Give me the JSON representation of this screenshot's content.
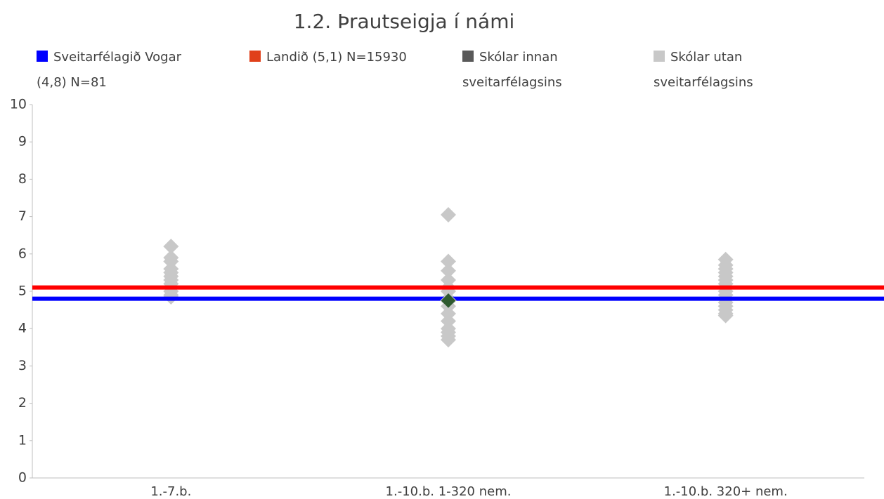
{
  "chart_data": {
    "type": "strip",
    "title": "1.2. Þrautseigja í námi",
    "categories": [
      "1.-7.b.",
      "1.-10.b. 1-320 nem.",
      "1.-10.b. 320+ nem."
    ],
    "ylim": [
      0,
      10
    ],
    "yticks": [
      0,
      1,
      2,
      3,
      4,
      5,
      6,
      7,
      8,
      9,
      10
    ],
    "series": [
      {
        "name": "Sveitarfélagið Vogar (4,8) N=81",
        "kind": "hline",
        "color": "#0000ff",
        "legend_color": "#0000ff",
        "value": 4.8
      },
      {
        "name": "Landið (5,1) N=15930",
        "kind": "hline",
        "color": "#ff0000",
        "legend_color": "#e0401a",
        "value": 5.1
      },
      {
        "name": "Skólar innan sveitarfélagsins",
        "kind": "points",
        "color": "#2f5a2f",
        "legend_color": "#595959",
        "values": [
          [],
          [
            4.75
          ],
          []
        ]
      },
      {
        "name": "Skólar utan sveitarfélagsins",
        "kind": "points",
        "color": "#c8c8c8",
        "legend_color": "#c8c8c8",
        "values": [
          [
            6.2,
            5.9,
            5.8,
            5.6,
            5.5,
            5.4,
            5.3,
            5.2,
            5.1,
            5.0,
            4.9,
            4.85
          ],
          [
            7.05,
            5.8,
            5.55,
            5.3,
            5.1,
            5.0,
            4.8,
            4.6,
            4.4,
            4.2,
            4.0,
            3.9,
            3.8,
            3.7
          ],
          [
            5.85,
            5.7,
            5.6,
            5.5,
            5.4,
            5.3,
            5.2,
            5.1,
            5.0,
            4.9,
            4.8,
            4.7,
            4.6,
            4.5,
            4.4,
            4.35
          ]
        ]
      }
    ]
  }
}
